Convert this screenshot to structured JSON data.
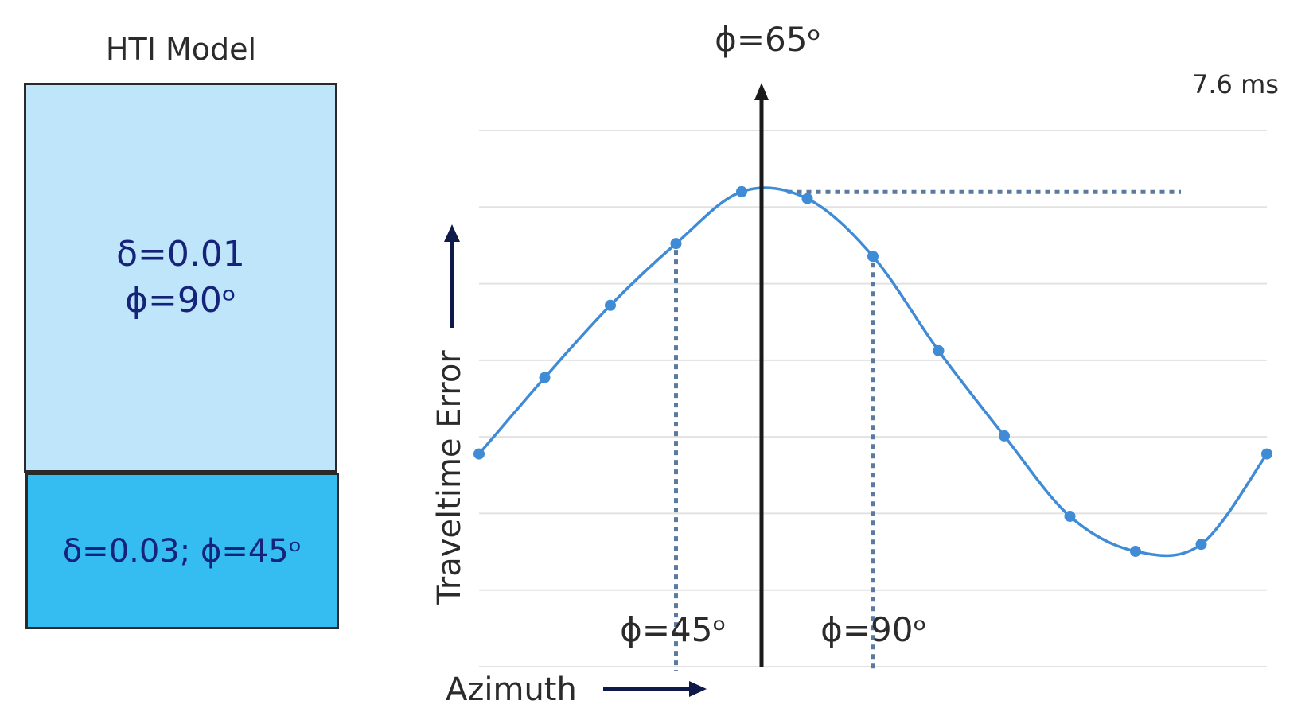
{
  "model": {
    "title": "HTI Model",
    "top_layer": {
      "delta": "δ=0.01",
      "phi": "ϕ=90ᵒ"
    },
    "bottom_layer": {
      "params": "δ=0.03; ϕ=45ᵒ"
    }
  },
  "chart_data": {
    "type": "line",
    "xlabel": "Azimuth",
    "ylabel": "Traveltime Error",
    "grid": true,
    "series": [
      {
        "points": [
          [
            0,
            -1.5
          ],
          [
            15,
            1.12
          ],
          [
            30,
            3.6
          ],
          [
            45,
            5.72
          ],
          [
            60,
            7.5
          ],
          [
            75,
            7.26
          ],
          [
            90,
            5.28
          ],
          [
            105,
            2.04
          ],
          [
            120,
            -0.88
          ],
          [
            135,
            -3.64
          ],
          [
            150,
            -4.84
          ],
          [
            165,
            -4.6
          ],
          [
            180,
            -1.5
          ]
        ]
      }
    ],
    "color": "#3f8bd6",
    "annotations": {
      "peak_label": "ϕ=65ᵒ",
      "peak_value_label": "7.6 ms",
      "peak_azimuth": 65,
      "peak_value": 7.6,
      "markers": [
        {
          "label": "ϕ=45ᵒ",
          "azimuth": 45
        },
        {
          "label": "ϕ=90ᵒ",
          "azimuth": 90
        }
      ]
    }
  }
}
